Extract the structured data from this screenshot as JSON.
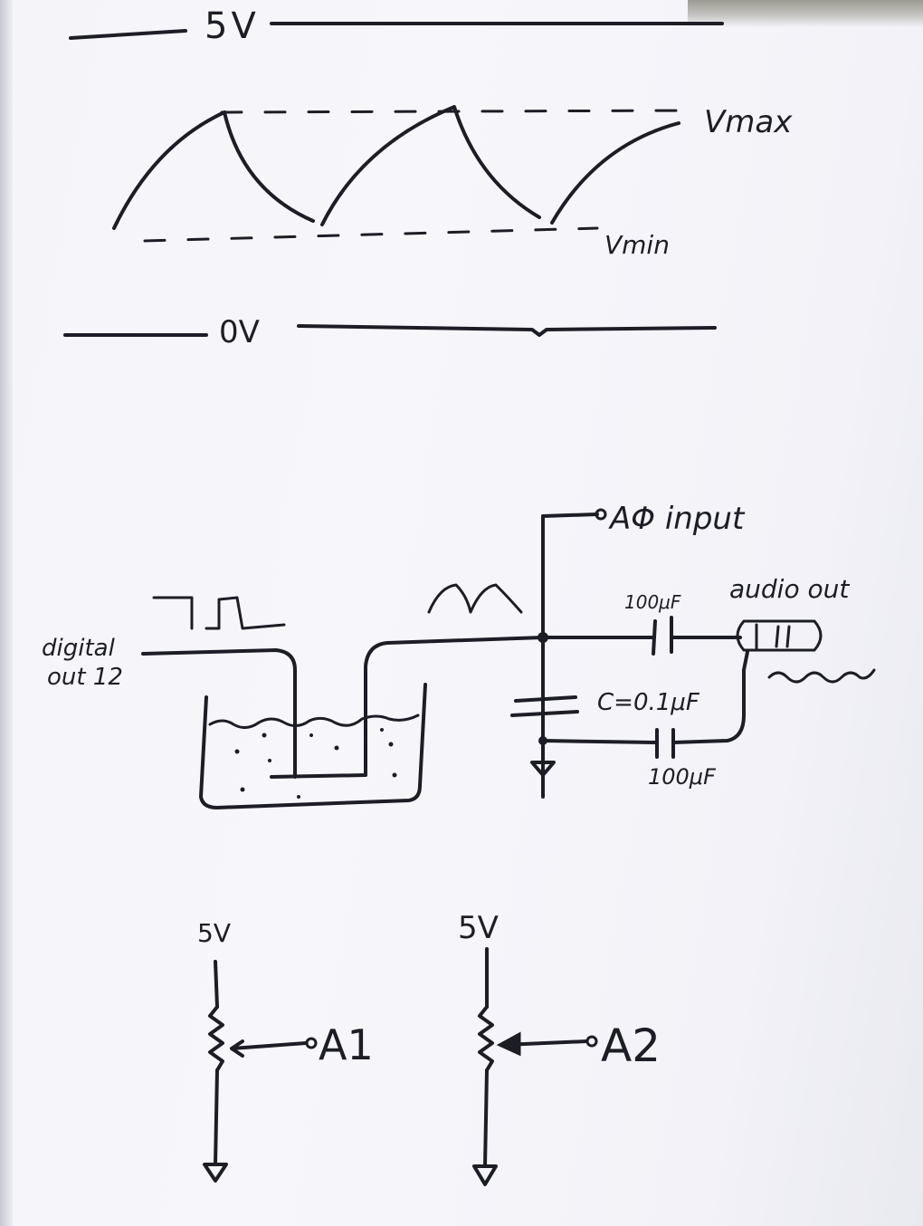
{
  "waveform": {
    "rail_top_label": "5V",
    "rail_bottom_label": "0V",
    "vmax_label": "Vmax",
    "vmin_label": "Vmin"
  },
  "circuit": {
    "input_label_line1": "digital",
    "input_label_line2": "out 12",
    "a0_label": "AΦ input",
    "cap_top_label": "100μF",
    "cap_bottom_label": "100μF",
    "cap_ground_label": "C=0.1μF",
    "audio_label": "audio out"
  },
  "pots": {
    "left_supply_label": "5V",
    "right_supply_label": "5V",
    "left_output_label": "A1",
    "right_output_label": "A2"
  },
  "colors": {
    "ink": "#1d1d26",
    "paper": "#f4f4f9"
  }
}
